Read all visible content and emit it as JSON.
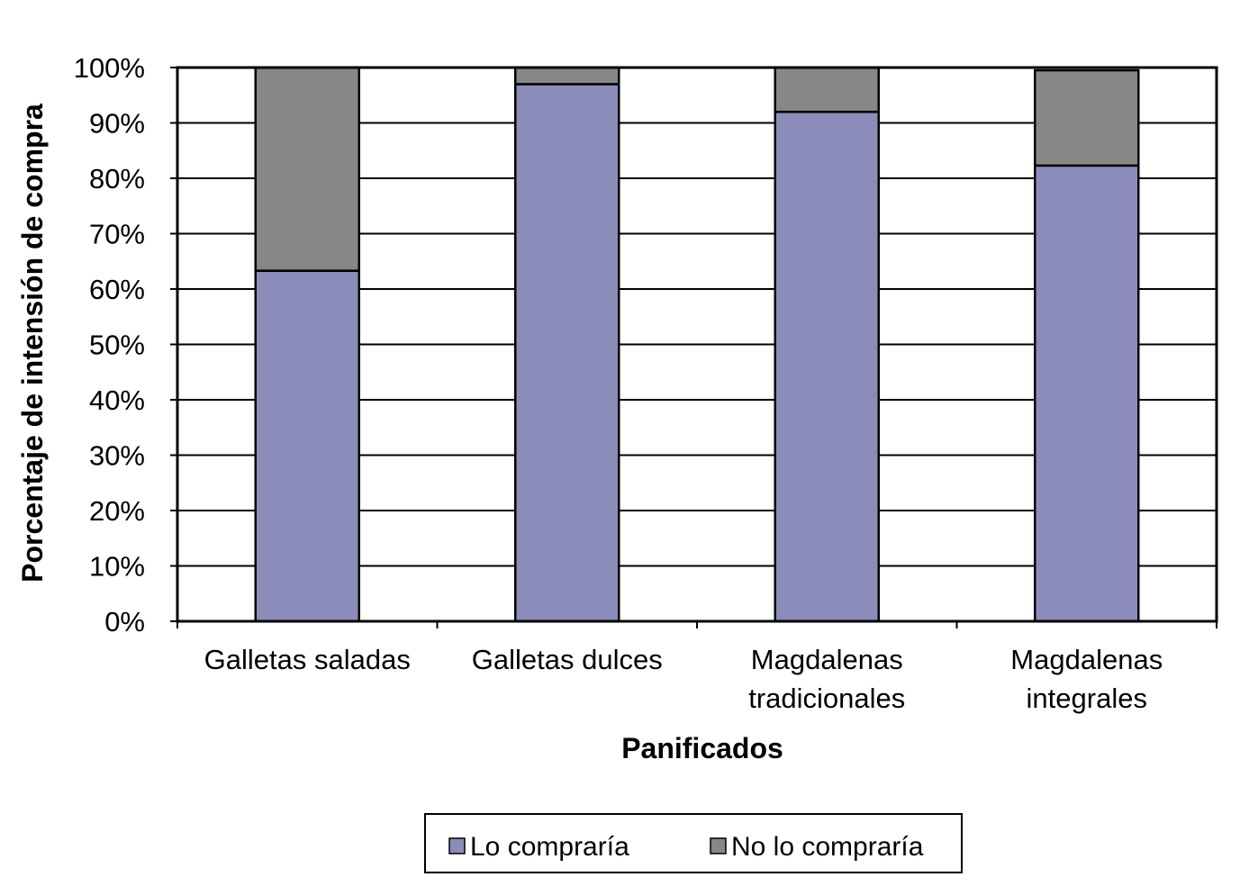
{
  "chart_data": {
    "type": "bar",
    "stacked": true,
    "categories": [
      [
        "Galletas saladas"
      ],
      [
        "Galletas dulces"
      ],
      [
        "Magdalenas",
        "tradicionales"
      ],
      [
        "Magdalenas",
        "integrales"
      ]
    ],
    "series": [
      {
        "name": "Lo compraría",
        "color": "#8c8cba",
        "values": [
          63.3,
          97.0,
          92.0,
          82.3
        ]
      },
      {
        "name": "No lo compraría",
        "color": "#878787",
        "values": [
          36.7,
          3.0,
          8.0,
          17.2
        ]
      }
    ],
    "xlabel": "Panificados",
    "ylabel": "Porcentaje de intensión de compra",
    "ylim": [
      0,
      100
    ],
    "y_ticks": [
      "0%",
      "10%",
      "20%",
      "30%",
      "40%",
      "50%",
      "60%",
      "70%",
      "80%",
      "90%",
      "100%"
    ],
    "grid": true,
    "legend": "bottom"
  }
}
